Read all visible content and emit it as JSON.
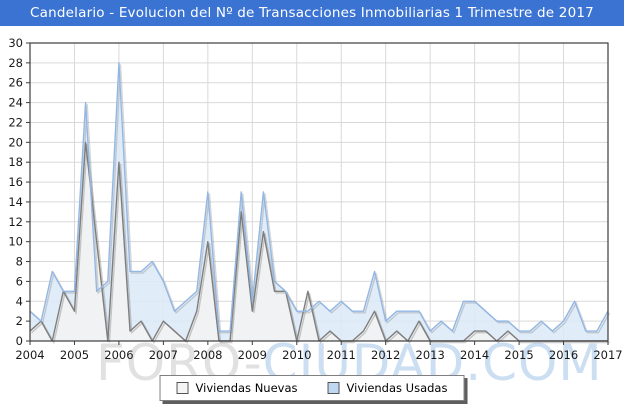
{
  "title_bar": {
    "text": "Candelario - Evolucion del Nº de Transacciones Inmobiliarias 1 Trimestre de 2017",
    "bg_color": "#3B73D3",
    "text_color": "#FFFFFF"
  },
  "watermark": {
    "part1": "FORO-",
    "part2": "CIUDAD.COM",
    "part1_color": "#DCDCDC",
    "part2_color": "#C3D9F0"
  },
  "legend": {
    "items": [
      {
        "label": "Viviendas Nuevas",
        "swatch_fill": "#F5F5F5",
        "swatch_border": "#555555"
      },
      {
        "label": "Viviendas Usadas",
        "swatch_fill": "#BFD8F1",
        "swatch_border": "#555555"
      }
    ]
  },
  "chart_data": {
    "type": "area",
    "title": "Candelario - Evolucion del Nº de Transacciones Inmobiliarias 1 Trimestre de 2017",
    "xlabel": "",
    "ylabel": "",
    "x_tick_labels": [
      "2004",
      "2005",
      "2006",
      "2007",
      "2008",
      "2009",
      "2010",
      "2011",
      "2012",
      "2013",
      "2014",
      "2015",
      "2016",
      "2017"
    ],
    "y_ticks": [
      0,
      2,
      4,
      6,
      8,
      10,
      12,
      14,
      16,
      18,
      20,
      22,
      24,
      26,
      28,
      30
    ],
    "ylim": [
      0,
      30
    ],
    "grid": true,
    "legend_position": "bottom",
    "x_unit": "quarter",
    "x_start": "2004-Q1",
    "x_end": "2017-Q1",
    "plot_bg": "#FFFFFF",
    "grid_color": "#D9D9D9",
    "border_color": "#3C3C3C",
    "tick_label_color": "#1A1A1A",
    "series": [
      {
        "name": "Viviendas Nuevas",
        "line_color": "#7E7E7E",
        "fill_color": "#F2F2F2",
        "fill_opacity": 0.93,
        "values": [
          1,
          2,
          0,
          5,
          3,
          20,
          10,
          0,
          18,
          1,
          2,
          0,
          2,
          1,
          0,
          3,
          10,
          0,
          0,
          13,
          3,
          11,
          5,
          5,
          0,
          5,
          0,
          1,
          0,
          0,
          1,
          3,
          0,
          1,
          0,
          2,
          0,
          0,
          0,
          0,
          1,
          1,
          0,
          1,
          0,
          0,
          0,
          0,
          0,
          0,
          0,
          0,
          0
        ]
      },
      {
        "name": "Viviendas Usadas",
        "line_color": "#93B7E3",
        "fill_color": "#DCE9F8",
        "fill_opacity": 0.85,
        "values": [
          3,
          2,
          7,
          5,
          5,
          24,
          5,
          6,
          28,
          7,
          7,
          8,
          6,
          3,
          4,
          5,
          15,
          1,
          1,
          15,
          4,
          15,
          6,
          5,
          3,
          3,
          4,
          3,
          4,
          3,
          3,
          7,
          2,
          3,
          3,
          3,
          1,
          2,
          1,
          4,
          4,
          3,
          2,
          2,
          1,
          1,
          2,
          1,
          2,
          4,
          1,
          1,
          3
        ]
      }
    ]
  }
}
